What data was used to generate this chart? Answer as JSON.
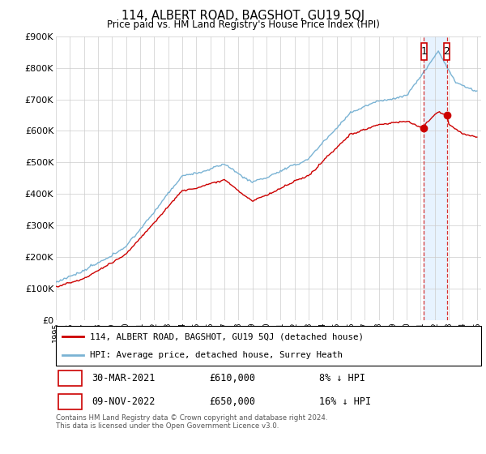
{
  "title": "114, ALBERT ROAD, BAGSHOT, GU19 5QJ",
  "subtitle": "Price paid vs. HM Land Registry's House Price Index (HPI)",
  "legend_line1": "114, ALBERT ROAD, BAGSHOT, GU19 5QJ (detached house)",
  "legend_line2": "HPI: Average price, detached house, Surrey Heath",
  "transaction1_label": "1",
  "transaction1_date": "30-MAR-2021",
  "transaction1_price": "£610,000",
  "transaction1_note": "8% ↓ HPI",
  "transaction2_label": "2",
  "transaction2_date": "09-NOV-2022",
  "transaction2_price": "£650,000",
  "transaction2_note": "16% ↓ HPI",
  "footer": "Contains HM Land Registry data © Crown copyright and database right 2024.\nThis data is licensed under the Open Government Licence v3.0.",
  "hpi_color": "#7ab3d4",
  "price_color": "#cc0000",
  "dashed_color": "#cc0000",
  "shade_color": "#ddeeff",
  "ylim": [
    0,
    900000
  ],
  "yticks": [
    0,
    100000,
    200000,
    300000,
    400000,
    500000,
    600000,
    700000,
    800000,
    900000
  ],
  "ytick_labels": [
    "£0",
    "£100K",
    "£200K",
    "£300K",
    "£400K",
    "£500K",
    "£600K",
    "£700K",
    "£800K",
    "£900K"
  ],
  "transaction1_year": 2021.23,
  "transaction2_year": 2022.85,
  "transaction1_price_val": 610000,
  "transaction2_price_val": 650000
}
